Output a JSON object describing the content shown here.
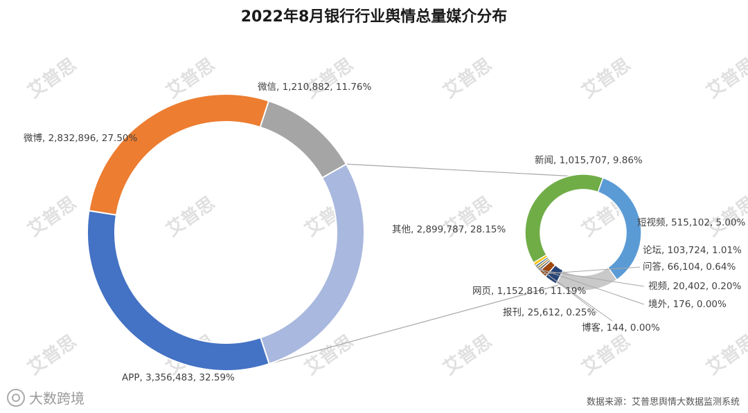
{
  "title": "2022年8月银行行业舆情总量媒介分布",
  "source": "数据来源：艾普思舆情大数据监测系统",
  "brand_label": "大数跨境",
  "watermark_text": "艾普思",
  "chart_data": [
    {
      "type": "pie",
      "variant": "donut",
      "slices": [
        {
          "name": "其他",
          "value": 2899787,
          "percent": "28.15%",
          "label": "其他, 2,899,787, 28.15%",
          "color": "#A9B8DE"
        },
        {
          "name": "APP",
          "value": 3356483,
          "percent": "32.59%",
          "label": "APP, 3,356,483, 32.59%",
          "color": "#4472C4"
        },
        {
          "name": "微博",
          "value": 2832896,
          "percent": "27.50%",
          "label": "微博, 2,832,896, 27.50%",
          "color": "#ED7D31"
        },
        {
          "name": "微信",
          "value": 1210882,
          "percent": "11.76%",
          "label": "微信, 1,210,882, 11.76%",
          "color": "#A5A5A5"
        }
      ]
    },
    {
      "type": "pie",
      "variant": "donut",
      "slices": [
        {
          "name": "新闻",
          "value": 1015707,
          "percent": "9.86%",
          "label": "新闻, 1,015,707, 9.86%",
          "color": "#5B9BD5"
        },
        {
          "name": "短视频",
          "value": 515102,
          "percent": "5.00%",
          "label": "短视频, 515,102, 5.00%",
          "color": "#C9C9C9"
        },
        {
          "name": "论坛",
          "value": 103724,
          "percent": "1.01%",
          "label": "论坛, 103,724, 1.01%",
          "color": "#264478"
        },
        {
          "name": "问答",
          "value": 66104,
          "percent": "0.64%",
          "label": "问答, 66,104, 0.64%",
          "color": "#9E480E"
        },
        {
          "name": "视频",
          "value": 20402,
          "percent": "0.20%",
          "label": "视频, 20,402, 0.20%",
          "color": "#636363"
        },
        {
          "name": "境外",
          "value": 176,
          "percent": "0.00%",
          "label": "境外, 176, 0.00%",
          "color": "#997300"
        },
        {
          "name": "博客",
          "value": 144,
          "percent": "0.00%",
          "label": "博客, 144, 0.00%",
          "color": "#255E91"
        },
        {
          "name": "报刊",
          "value": 25612,
          "percent": "0.25%",
          "label": "报刊, 25,612, 0.25%",
          "color": "#FFC000"
        },
        {
          "name": "网页",
          "value": 1152816,
          "percent": "11.19%",
          "label": "网页, 1,152,816, 11.19%",
          "color": "#70AD47"
        }
      ]
    }
  ]
}
